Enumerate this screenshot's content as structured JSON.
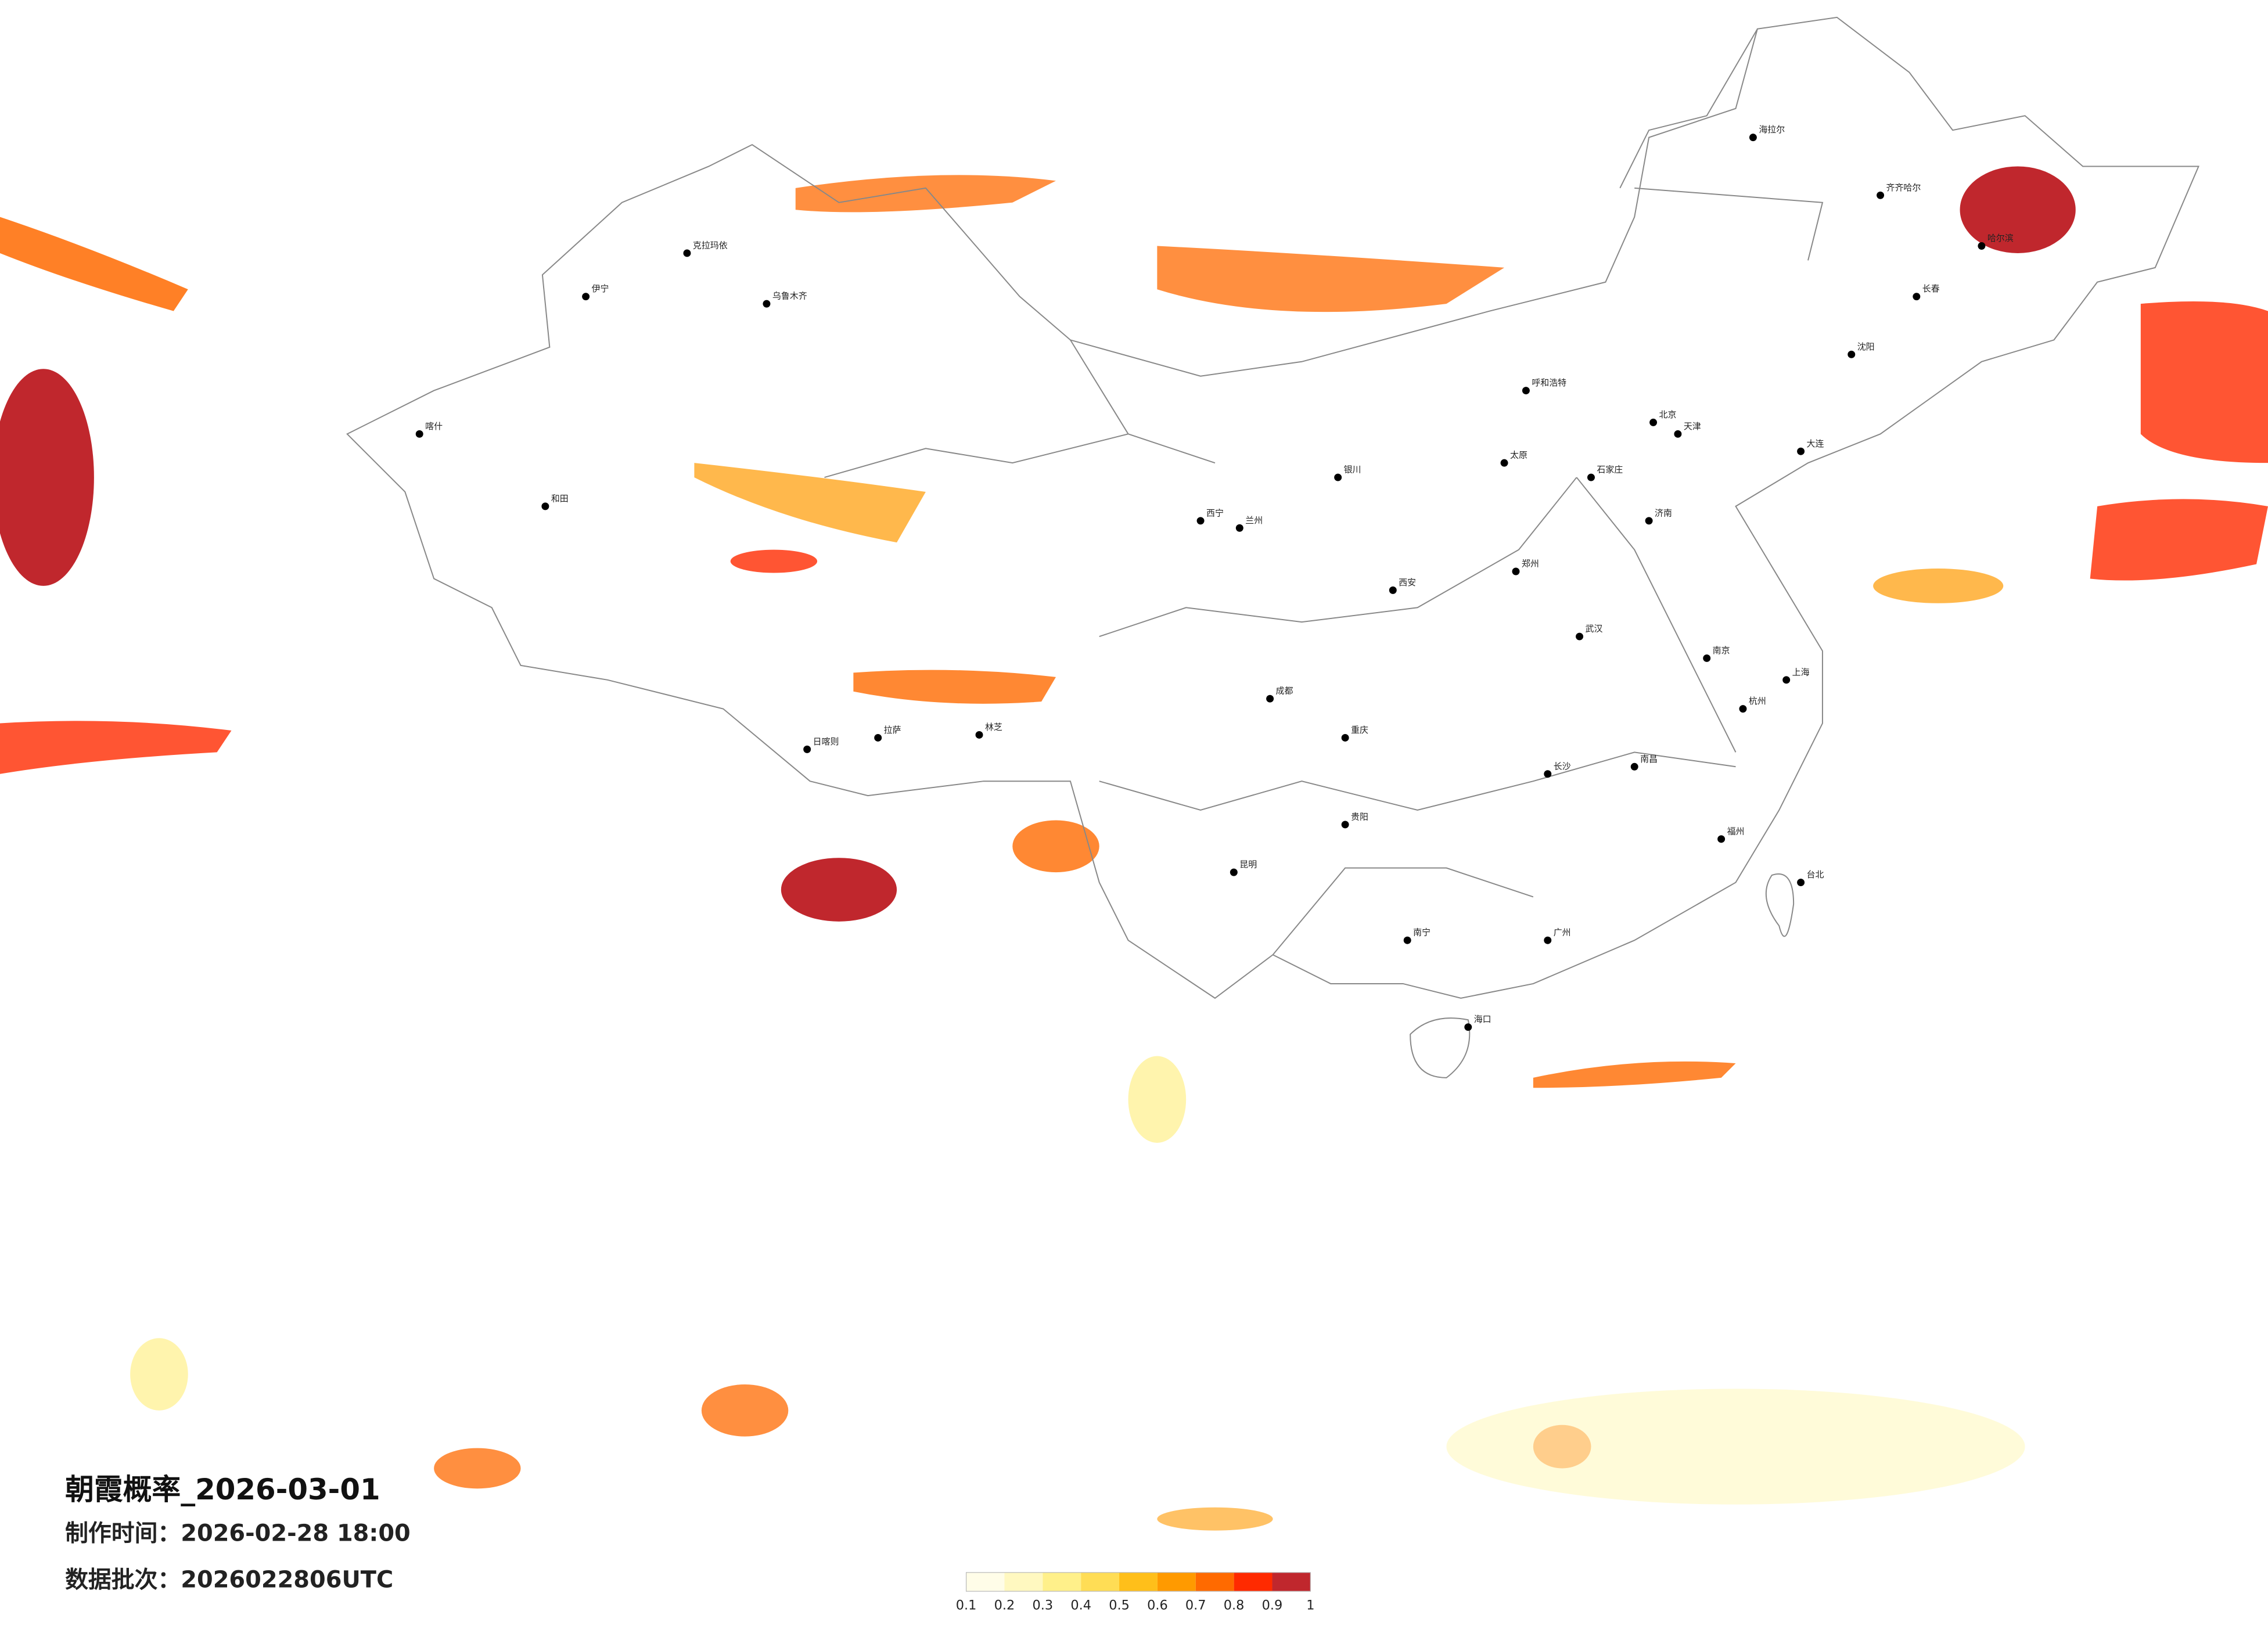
{
  "header": {
    "title": "朝霞概率_2026-03-01",
    "made_time": "制作时间：2026-02-28 18:00",
    "batch": "数据批次：2026022806UTC"
  },
  "legend": {
    "ticks": [
      0.1,
      0.2,
      0.3,
      0.4,
      0.5,
      0.6,
      0.7,
      0.8,
      0.9,
      1
    ],
    "colors": [
      "#fffde8",
      "#fff8c0",
      "#fff08a",
      "#ffdd55",
      "#ffbf1a",
      "#ff9a00",
      "#ff6a00",
      "#ff2a00",
      "#c0272d"
    ]
  },
  "cities": [
    "北京",
    "上海",
    "广州",
    "成都",
    "武汉",
    "西安",
    "乌鲁木齐",
    "拉萨",
    "哈尔滨",
    "昆明",
    "兰州",
    "重庆",
    "南京",
    "杭州",
    "长沙",
    "郑州",
    "济南",
    "沈阳",
    "呼和浩特",
    "银川",
    "西宁",
    "南宁",
    "贵阳",
    "福州",
    "南昌",
    "太原",
    "石家庄",
    "天津",
    "海口",
    "台北",
    "长春",
    "和田",
    "喀什",
    "伊宁",
    "日喀则",
    "林芝",
    "海拉尔",
    "齐齐哈尔",
    "大连",
    "克拉玛依"
  ]
}
